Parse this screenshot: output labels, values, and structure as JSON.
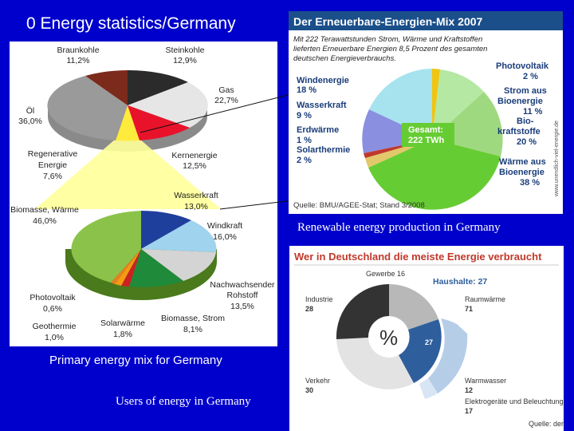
{
  "slide": {
    "title": "0 Energy statistics/Germany",
    "captions": {
      "primary": "Primary energy mix for Germany",
      "users": "Users of energy in Germany",
      "renewable": "Renewable energy production in Germany"
    }
  },
  "primary_chart": {
    "labels": {
      "braunkohle": [
        "Braunkohle",
        "11,2%"
      ],
      "steinkohle": [
        "Steinkohle",
        "12,9%"
      ],
      "gas": [
        "Gas",
        "22,7%"
      ],
      "oel": [
        "Öl",
        "36,0%"
      ],
      "regenerative": [
        "Regenerative",
        "Energie",
        "7,6%"
      ],
      "kernenergie": [
        "Kernenergie",
        "12,5%"
      ],
      "wasserkraft": [
        "Wasserkraft",
        "13,0%"
      ],
      "biomasse": [
        "Biomasse, Wärme",
        "46,0%"
      ],
      "windkraft": [
        "Windkraft",
        "16,0%"
      ],
      "nachwachsender": [
        "Nachwachsender",
        "Rohstoff",
        "13,5%"
      ],
      "photovoltaik": [
        "Photovoltaik",
        "0,6%"
      ],
      "geothermie": [
        "Geothermie",
        "1,0%"
      ],
      "solarwaerme": [
        "Solarwärme",
        "1,8%"
      ],
      "biomasse_strom": [
        "Biomasse, Strom",
        "8,1%"
      ]
    }
  },
  "mix_chart": {
    "title": "Der Erneuerbare-Energien-Mix 2007",
    "subtitle": [
      "Mit 222 Terawattstunden Strom, Wärme und Kraftstoffen",
      "lieferten Erneuerbare Energien 8,5 Prozent des gesamten",
      "deutschen Energieverbrauchs."
    ],
    "labels": {
      "photovoltaik": [
        "Photovoltaik",
        "2 %"
      ],
      "windenergie": [
        "Windenergie",
        "18 %"
      ],
      "strom_bio": [
        "Strom aus",
        "Bioenergie",
        "11 %"
      ],
      "wasserkraft": [
        "Wasserkraft",
        "9 %"
      ],
      "biokraft": [
        "Bio-",
        "kraftstoffe",
        "20 %"
      ],
      "erdwaerme": [
        "Erdwärme",
        "1 %"
      ],
      "solarthermie": [
        "Solarthermie",
        "2 %"
      ],
      "waerme_bio": [
        "Wärme aus",
        "Bioenergie",
        "38 %"
      ],
      "gesamt": [
        "Gesamt:",
        "222 TWh"
      ]
    },
    "source": "Quelle: BMU/AGEE-Stat; Stand 3/2008",
    "side_url": "www.unendlich-viel-energie.de"
  },
  "users_chart": {
    "title": "Wer in Deutschland die meiste Energie verbraucht",
    "center_symbol": "%",
    "labels": {
      "gewerbe": "Gewerbe 16",
      "haushalte_title": "Haushalte: 27",
      "industrie": [
        "Industrie",
        "28"
      ],
      "raumwaerme": [
        "Raumwärme",
        "71"
      ],
      "verkehr": [
        "Verkehr",
        "30"
      ],
      "haushalte_value": "27",
      "warmwasser": [
        "Warmwasser",
        "12"
      ],
      "elektro": [
        "Elektrogeräte und Beleuchtung",
        "17"
      ],
      "quelle": "Quelle: dena"
    }
  },
  "colors": {
    "background": "#0000cc",
    "mix_header": "#1a4f8a",
    "users_title": "#c0392b",
    "haushalte_blue": "#2e5e9c"
  }
}
